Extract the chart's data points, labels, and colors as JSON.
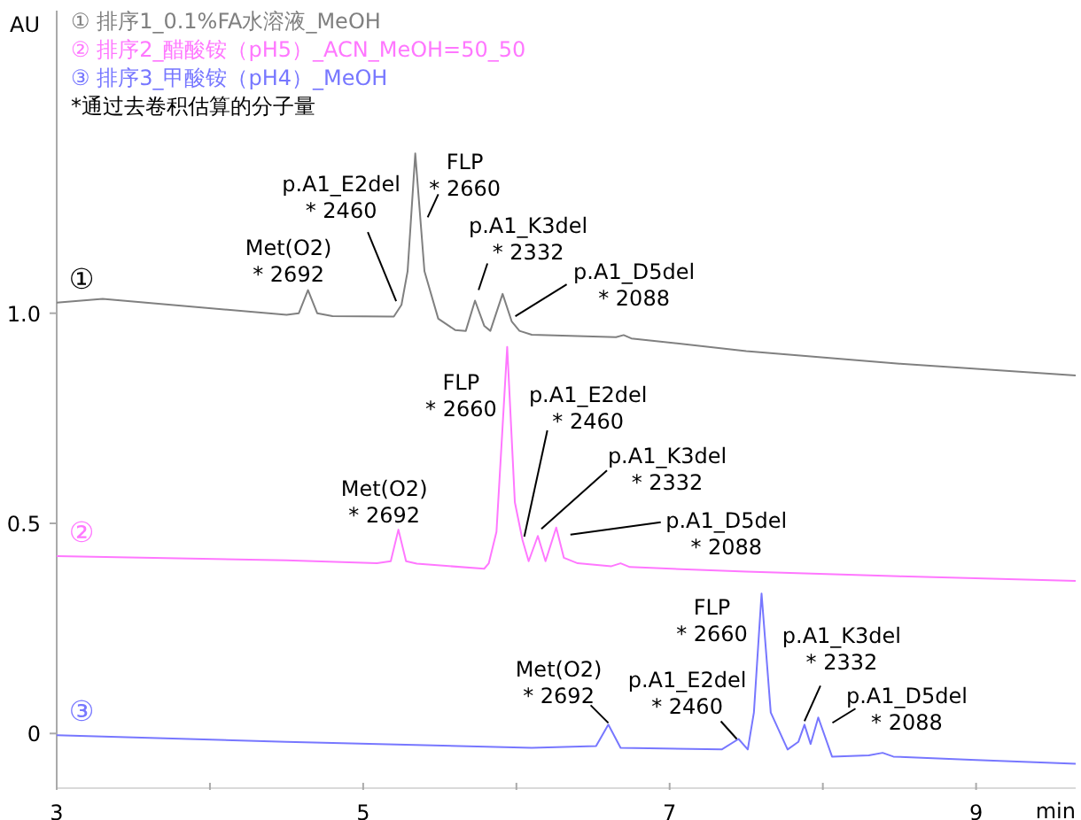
{
  "chart_data": {
    "type": "line",
    "xlabel": "min",
    "ylabel": "AU",
    "xlim": [
      3,
      9.65
    ],
    "ylim": [
      -0.13,
      1.72
    ],
    "xticks": [
      3,
      {
        "value": 4,
        "label": null
      },
      5,
      {
        "value": 6,
        "label": null
      },
      7,
      {
        "value": 8,
        "label": null
      },
      9
    ],
    "yticks": [
      {
        "value": 0,
        "label": "0"
      },
      {
        "value": 0.5,
        "label": "0.5"
      },
      {
        "value": 1,
        "label": "1.0"
      }
    ],
    "legend": "top left",
    "grid": false,
    "marker": "none",
    "line_style": "solid",
    "series": [
      {
        "name": "① 排序1_0.1%FA水溶液_MeOH",
        "color": "#808080",
        "x": [
          3,
          3.3,
          4.5,
          4.58,
          4.64,
          4.7,
          4.8,
          5.2,
          5.25,
          5.29,
          5.34,
          5.4,
          5.49,
          5.6,
          5.67,
          5.73,
          5.79,
          5.83,
          5.91,
          5.97,
          6.02,
          6.1,
          6.65,
          6.7,
          6.75,
          7.5,
          8.5,
          9.65
        ],
        "values": [
          1.025,
          1.034,
          0.996,
          1.0,
          1.055,
          1.0,
          0.993,
          0.992,
          1.02,
          1.1,
          1.38,
          1.1,
          0.987,
          0.96,
          0.958,
          1.03,
          0.97,
          0.958,
          1.046,
          0.98,
          0.958,
          0.949,
          0.943,
          0.948,
          0.94,
          0.91,
          0.88,
          0.852
        ]
      },
      {
        "name": "② 排序2_醋酸铵（pH5）_ACN_MeOH=50_50",
        "color": "#ff77ff",
        "x": [
          3,
          4.5,
          5.09,
          5.18,
          5.23,
          5.28,
          5.35,
          5.79,
          5.82,
          5.87,
          5.94,
          5.99,
          6.04,
          6.08,
          6.14,
          6.19,
          6.26,
          6.31,
          6.4,
          6.62,
          6.68,
          6.74,
          7.5,
          8.5,
          9.65
        ],
        "values": [
          0.422,
          0.412,
          0.405,
          0.41,
          0.485,
          0.41,
          0.404,
          0.392,
          0.405,
          0.48,
          0.92,
          0.55,
          0.46,
          0.41,
          0.47,
          0.41,
          0.49,
          0.418,
          0.405,
          0.398,
          0.405,
          0.396,
          0.385,
          0.374,
          0.363
        ]
      },
      {
        "name": "③ 排序3_甲酸铵（pH4）_MeOH",
        "color": "#7777ff",
        "x": [
          3,
          4.5,
          6.1,
          6.52,
          6.6,
          6.68,
          7.34,
          7.45,
          7.51,
          7.55,
          7.6,
          7.66,
          7.77,
          7.84,
          7.88,
          7.92,
          7.97,
          8.06,
          8.3,
          8.39,
          8.46,
          9.0,
          9.65
        ],
        "values": [
          -0.004,
          -0.02,
          -0.034,
          -0.03,
          0.021,
          -0.034,
          -0.038,
          -0.013,
          -0.038,
          0.05,
          0.333,
          0.05,
          -0.038,
          -0.02,
          0.021,
          -0.025,
          0.038,
          -0.055,
          -0.052,
          -0.046,
          -0.055,
          -0.063,
          -0.072
        ]
      }
    ],
    "annotations": [
      "*通过去卷积估算的分子量",
      "①",
      "②",
      "③",
      {
        "text": "Met(O2)\n* 2692",
        "x": 4.64,
        "y": 1.055
      },
      {
        "text": "p.A1_E2del\n* 2460",
        "x": 5.25,
        "y": 1.02
      },
      {
        "text": "FLP\n* 2660",
        "x": 5.34,
        "y": 1.38
      },
      {
        "text": "p.A1_K3del\n* 2332",
        "x": 5.73,
        "y": 1.03
      },
      {
        "text": "p.A1_D5del\n* 2088",
        "x": 5.97,
        "y": 0.98
      },
      {
        "text": "Met(O2)\n* 2692",
        "x": 5.23,
        "y": 0.485
      },
      {
        "text": "FLP\n* 2660",
        "x": 5.94,
        "y": 0.92
      },
      {
        "text": "p.A1_E2del\n* 2460",
        "x": 6.04,
        "y": 0.46
      },
      {
        "text": "p.A1_K3del\n* 2332",
        "x": 6.14,
        "y": 0.47
      },
      {
        "text": "p.A1_D5del\n* 2088",
        "x": 6.26,
        "y": 0.49
      },
      {
        "text": "Met(O2)\n* 2692",
        "x": 6.6,
        "y": 0.021
      },
      {
        "text": "p.A1_E2del\n* 2460",
        "x": 7.45,
        "y": -0.013
      },
      {
        "text": "FLP\n* 2660",
        "x": 7.6,
        "y": 0.333
      },
      {
        "text": "p.A1_K3del\n* 2332",
        "x": 7.88,
        "y": 0.021
      },
      {
        "text": "p.A1_D5del\n* 2088",
        "x": 7.97,
        "y": 0.038
      }
    ]
  }
}
